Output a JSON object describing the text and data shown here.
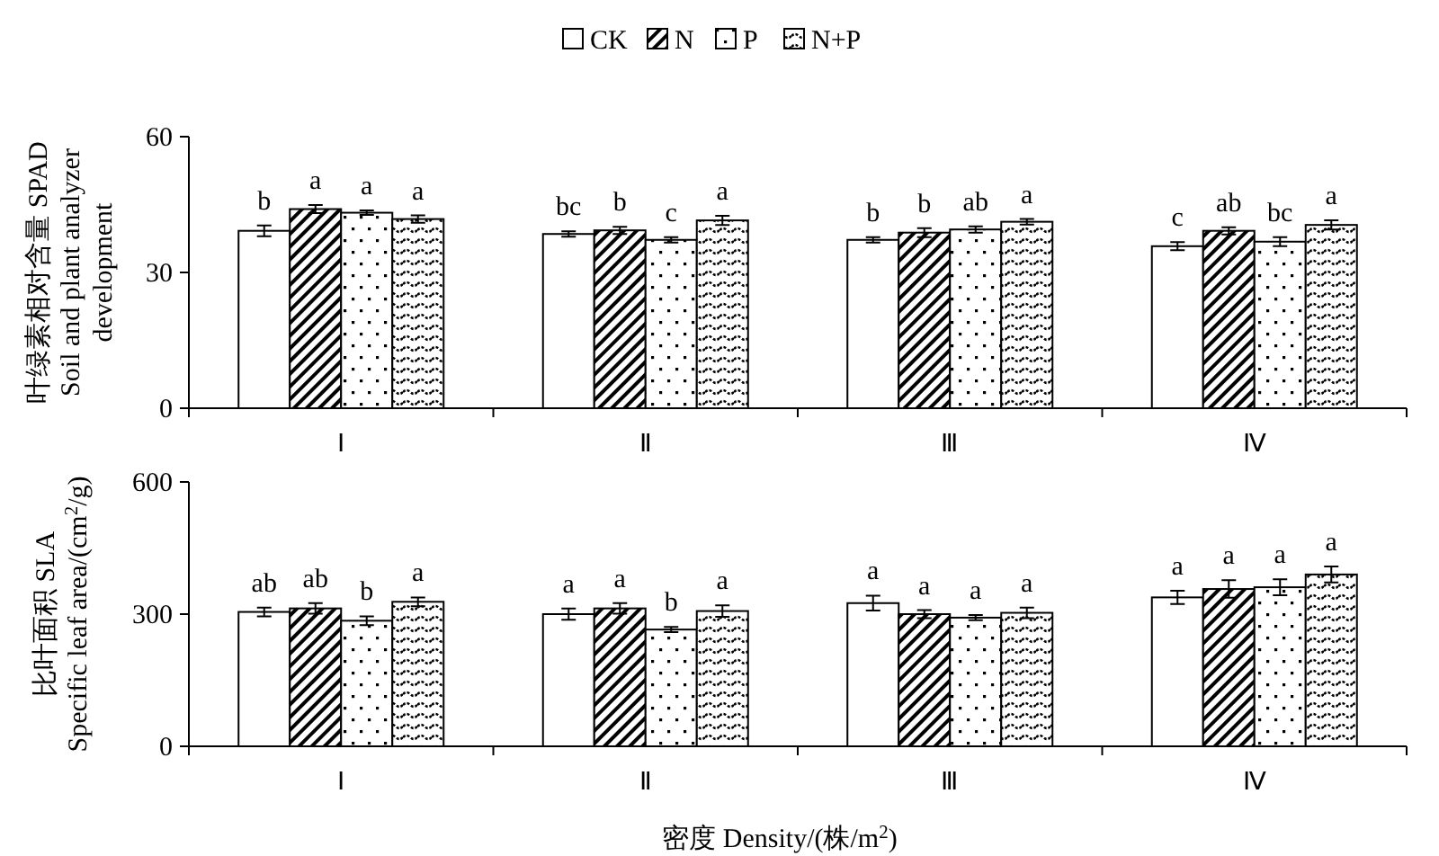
{
  "chart_data": [
    {
      "type": "bar",
      "ylabel": "叶绿素相对含量 SPAD\nSoil and plant analyzer\ndevelopment",
      "categories": [
        "Ⅰ",
        "Ⅱ",
        "Ⅲ",
        "Ⅳ"
      ],
      "ylim": [
        0,
        60
      ],
      "yticks": [
        0,
        30,
        60
      ],
      "legend": "top",
      "grid": false,
      "series": [
        {
          "name": "CK",
          "color": "#ffffff",
          "values": [
            39.2,
            38.5,
            37.2,
            35.8
          ],
          "errors": [
            1.2,
            0.6,
            0.6,
            0.9
          ]
        },
        {
          "name": "N",
          "color": "#000000",
          "values": [
            44.0,
            39.3,
            38.8,
            39.2
          ],
          "errors": [
            0.9,
            0.8,
            1.0,
            0.8
          ]
        },
        {
          "name": "P",
          "color": "#000000",
          "values": [
            43.2,
            37.2,
            39.5,
            36.8
          ],
          "errors": [
            0.5,
            0.6,
            0.7,
            1.0
          ]
        },
        {
          "name": "N+P",
          "color": "#000000",
          "values": [
            41.8,
            41.5,
            41.2,
            40.5
          ],
          "errors": [
            0.8,
            1.0,
            0.6,
            1.0
          ]
        }
      ],
      "annotations": [
        "b",
        "a",
        "a",
        "a",
        "bc",
        "b",
        "c",
        "a",
        "b",
        "b",
        "ab",
        "a",
        "c",
        "ab",
        "bc",
        "a"
      ]
    },
    {
      "type": "bar",
      "ylabel": "比叶面积 SLA\nSpecific leaf area/(cm$^{2}$/g)",
      "xlabel": "密度 Density/(株/m$^{2}$)",
      "categories": [
        "Ⅰ",
        "Ⅱ",
        "Ⅲ",
        "Ⅳ"
      ],
      "ylim": [
        0,
        600
      ],
      "yticks": [
        0,
        300,
        600
      ],
      "grid": false,
      "series": [
        {
          "color": "#ffffff",
          "values": [
            305,
            300,
            325,
            338
          ],
          "errors": [
            10,
            13,
            17,
            15
          ]
        },
        {
          "color": "#000000",
          "values": [
            313,
            313,
            300,
            357
          ],
          "errors": [
            12,
            12,
            9,
            20
          ]
        },
        {
          "color": "#000000",
          "values": [
            285,
            265,
            292,
            361
          ],
          "errors": [
            10,
            6,
            6,
            18
          ]
        },
        {
          "color": "#000000",
          "values": [
            328,
            307,
            303,
            390
          ],
          "errors": [
            10,
            13,
            12,
            18
          ]
        }
      ],
      "annotations": [
        "ab",
        "ab",
        "b",
        "a",
        "a",
        "a",
        "b",
        "a",
        "a",
        "a",
        "a",
        "a",
        "a",
        "a",
        "a",
        "a"
      ]
    }
  ]
}
